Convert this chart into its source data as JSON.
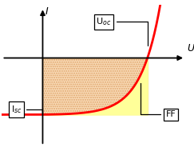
{
  "xlabel": "U",
  "ylabel": "I",
  "isc": -0.55,
  "uoc": 0.72,
  "xlim": [
    -0.28,
    1.0
  ],
  "ylim": [
    -0.85,
    0.52
  ],
  "bg_color": "#ffffff",
  "fill_main_color": "#f5c080",
  "fill_ff_color": "#ffff99",
  "curve_color": "#ff0000",
  "curve_linewidth": 2.0,
  "box_facecolor": "#ffffff",
  "box_edgecolor": "#000000",
  "label_Isc": "I$_{sc}$",
  "label_Uoc": "U$_{oc}$",
  "label_FF": "FF",
  "alpha_exp": 7.5
}
